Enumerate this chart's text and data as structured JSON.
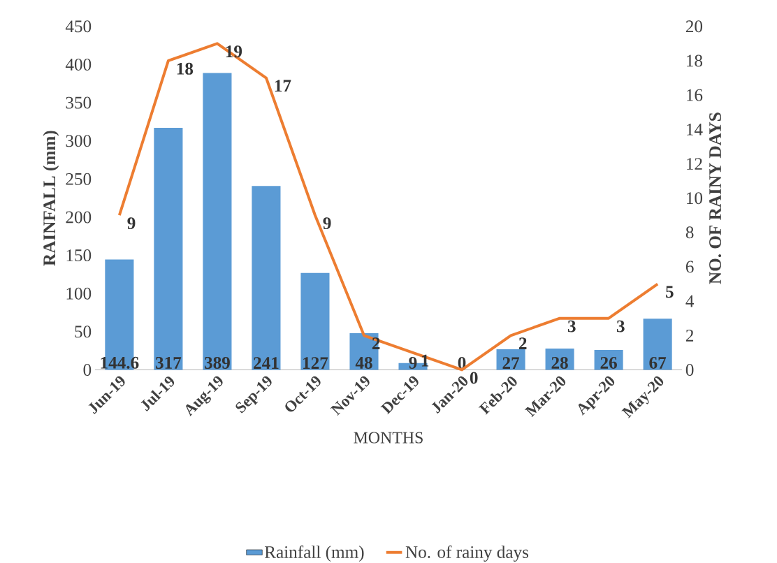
{
  "chart_data": {
    "type": "bar",
    "xlabel": "MONTHS",
    "ylabel": "RAINFALL (mm)",
    "y2label": "NO. OF RAINY DAYS",
    "categories": [
      "Jun-19",
      "Jul-19",
      "Aug-19",
      "Sep-19",
      "Oct-19",
      "Nov-19",
      "Dec-19",
      "Jan-20",
      "Feb-20",
      "Mar-20",
      "Apr-20",
      "May-20"
    ],
    "series": [
      {
        "name": "Rainfall (mm)",
        "color": "#5b9bd5",
        "values": [
          144.6,
          317,
          389,
          241,
          127,
          48,
          9,
          0,
          27,
          28,
          26,
          67
        ]
      },
      {
        "name": "No. of rainy days",
        "type": "line",
        "axis": "y2",
        "color": "#ed7d31",
        "values": [
          9,
          18,
          19,
          17,
          9,
          2,
          1,
          0,
          2,
          3,
          3,
          5
        ]
      }
    ],
    "ylim": [
      0,
      450
    ],
    "yticks": [
      0,
      50,
      100,
      150,
      200,
      250,
      300,
      350,
      400,
      450
    ],
    "y2lim": [
      0,
      20
    ],
    "y2ticks": [
      0,
      2,
      4,
      6,
      8,
      10,
      12,
      14,
      16,
      18,
      20
    ],
    "data_labels": true,
    "legend": "bottom",
    "grid": false
  }
}
